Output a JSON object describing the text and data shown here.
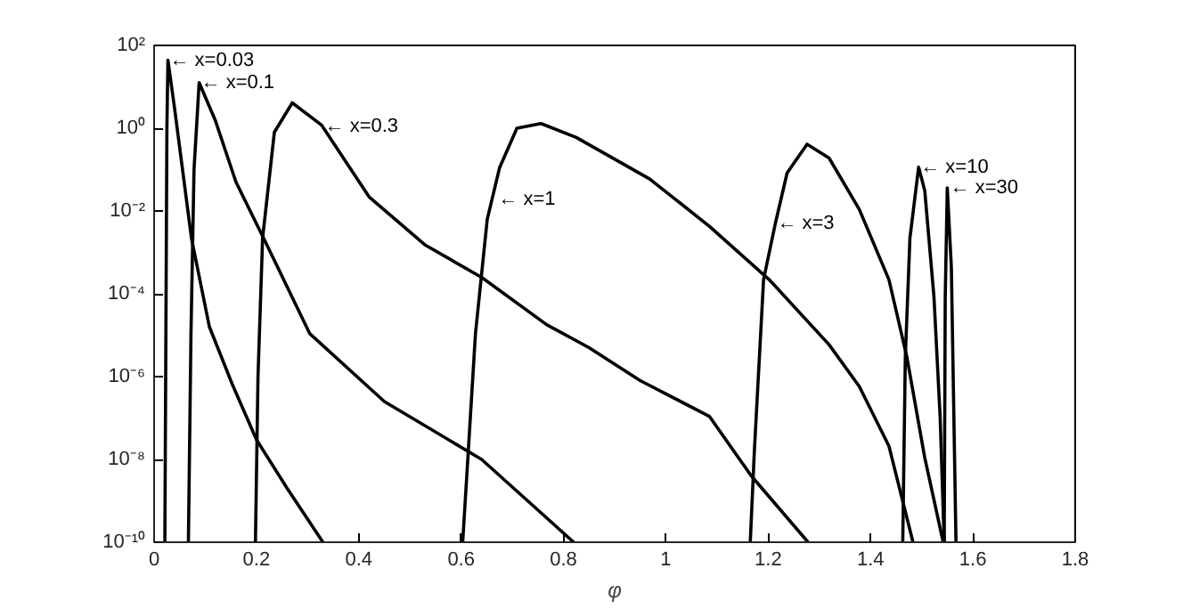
{
  "chart_data": {
    "type": "line",
    "xlabel": "φ",
    "log": "y",
    "grid": false,
    "marker": "none",
    "line_style": "solid",
    "xlim": [
      0,
      1.8
    ],
    "ylim": [
      1e-10,
      100
    ],
    "xticks": [
      0,
      0.2,
      0.4,
      0.6,
      0.8,
      1,
      1.2,
      1.4,
      1.6,
      1.8
    ],
    "yticks": [
      {
        "value": 1e-10,
        "label": "10⁻¹⁰"
      },
      {
        "value": 1e-08,
        "label": "10⁻⁸"
      },
      {
        "value": 1e-06,
        "label": "10⁻⁶"
      },
      {
        "value": 0.0001,
        "label": "10⁻⁴"
      },
      {
        "value": 0.01,
        "label": "10⁻²"
      },
      {
        "value": 1,
        "label": "10⁰"
      },
      {
        "value": 100,
        "label": "10²"
      }
    ],
    "series": [
      {
        "color": "#000000",
        "x": [
          0.021,
          0.023,
          0.025,
          0.027,
          0.04,
          0.073,
          0.108,
          0.154,
          0.2,
          0.26,
          0.33
        ],
        "values": [
          1e-10,
          1e-05,
          1,
          44,
          3,
          0.0022,
          1.6e-05,
          6e-07,
          3e-08,
          2e-09,
          1e-10
        ]
      },
      {
        "color": "#000000",
        "x": [
          0.067,
          0.072,
          0.078,
          0.088,
          0.12,
          0.16,
          0.214,
          0.304,
          0.45,
          0.64,
          0.73,
          0.82
        ],
        "values": [
          1e-10,
          1e-05,
          0.1,
          12.6,
          1.5,
          0.05,
          0.0022,
          1.1e-05,
          2.5e-07,
          1e-08,
          1e-09,
          1e-10
        ]
      },
      {
        "color": "#000000",
        "x": [
          0.198,
          0.203,
          0.212,
          0.235,
          0.27,
          0.327,
          0.42,
          0.53,
          0.64,
          0.767,
          0.85,
          0.95,
          1.085,
          1.167,
          1.278
        ],
        "values": [
          1e-10,
          1e-06,
          0.0022,
          0.8,
          4.1,
          1.2,
          0.022,
          0.0015,
          0.00025,
          1.8e-05,
          5e-06,
          8e-07,
          1.1e-07,
          4e-09,
          1e-10
        ]
      },
      {
        "color": "#000000",
        "x": [
          0.603,
          0.611,
          0.628,
          0.651,
          0.675,
          0.709,
          0.756,
          0.825,
          0.968,
          1.085,
          1.202,
          1.319,
          1.378,
          1.436,
          1.483
        ],
        "values": [
          1e-10,
          4e-09,
          1.1e-05,
          0.0063,
          0.11,
          1,
          1.3,
          0.6,
          0.06,
          0.0043,
          0.00022,
          5.9e-06,
          5.8e-07,
          2.1e-08,
          1e-10
        ]
      },
      {
        "color": "#000000",
        "x": [
          1.165,
          1.173,
          1.191,
          1.214,
          1.237,
          1.276,
          1.319,
          1.378,
          1.436,
          1.471,
          1.506,
          1.542
        ],
        "values": [
          1e-10,
          1.6e-08,
          0.00022,
          0.005,
          0.083,
          0.41,
          0.19,
          0.011,
          0.00022,
          3e-06,
          1.1e-08,
          1e-10
        ]
      },
      {
        "color": "#000000",
        "x": [
          1.463,
          1.468,
          1.477,
          1.494,
          1.506,
          1.524,
          1.536,
          1.544
        ],
        "values": [
          1e-10,
          3e-06,
          0.0022,
          0.115,
          0.031,
          8.3e-05,
          1.1e-07,
          1e-10
        ]
      },
      {
        "color": "#000000",
        "x": [
          1.544,
          1.546,
          1.55,
          1.558,
          1.567
        ],
        "values": [
          1e-10,
          8.3e-05,
          0.036,
          0.00043,
          1e-10
        ]
      }
    ],
    "annotations": [
      {
        "text": "← x=0.03",
        "x": 0.027,
        "y": 44
      },
      {
        "text": "← x=0.1",
        "x": 0.088,
        "y": 12.6
      },
      {
        "text": "← x=0.3",
        "x": 0.33,
        "y": 1.1
      },
      {
        "text": "← x=1",
        "x": 0.669,
        "y": 0.019
      },
      {
        "text": "← x=3",
        "x": 1.214,
        "y": 0.005
      },
      {
        "text": "← x=10",
        "x": 1.494,
        "y": 0.115
      },
      {
        "text": "← x=30",
        "x": 1.552,
        "y": 0.036
      }
    ]
  }
}
